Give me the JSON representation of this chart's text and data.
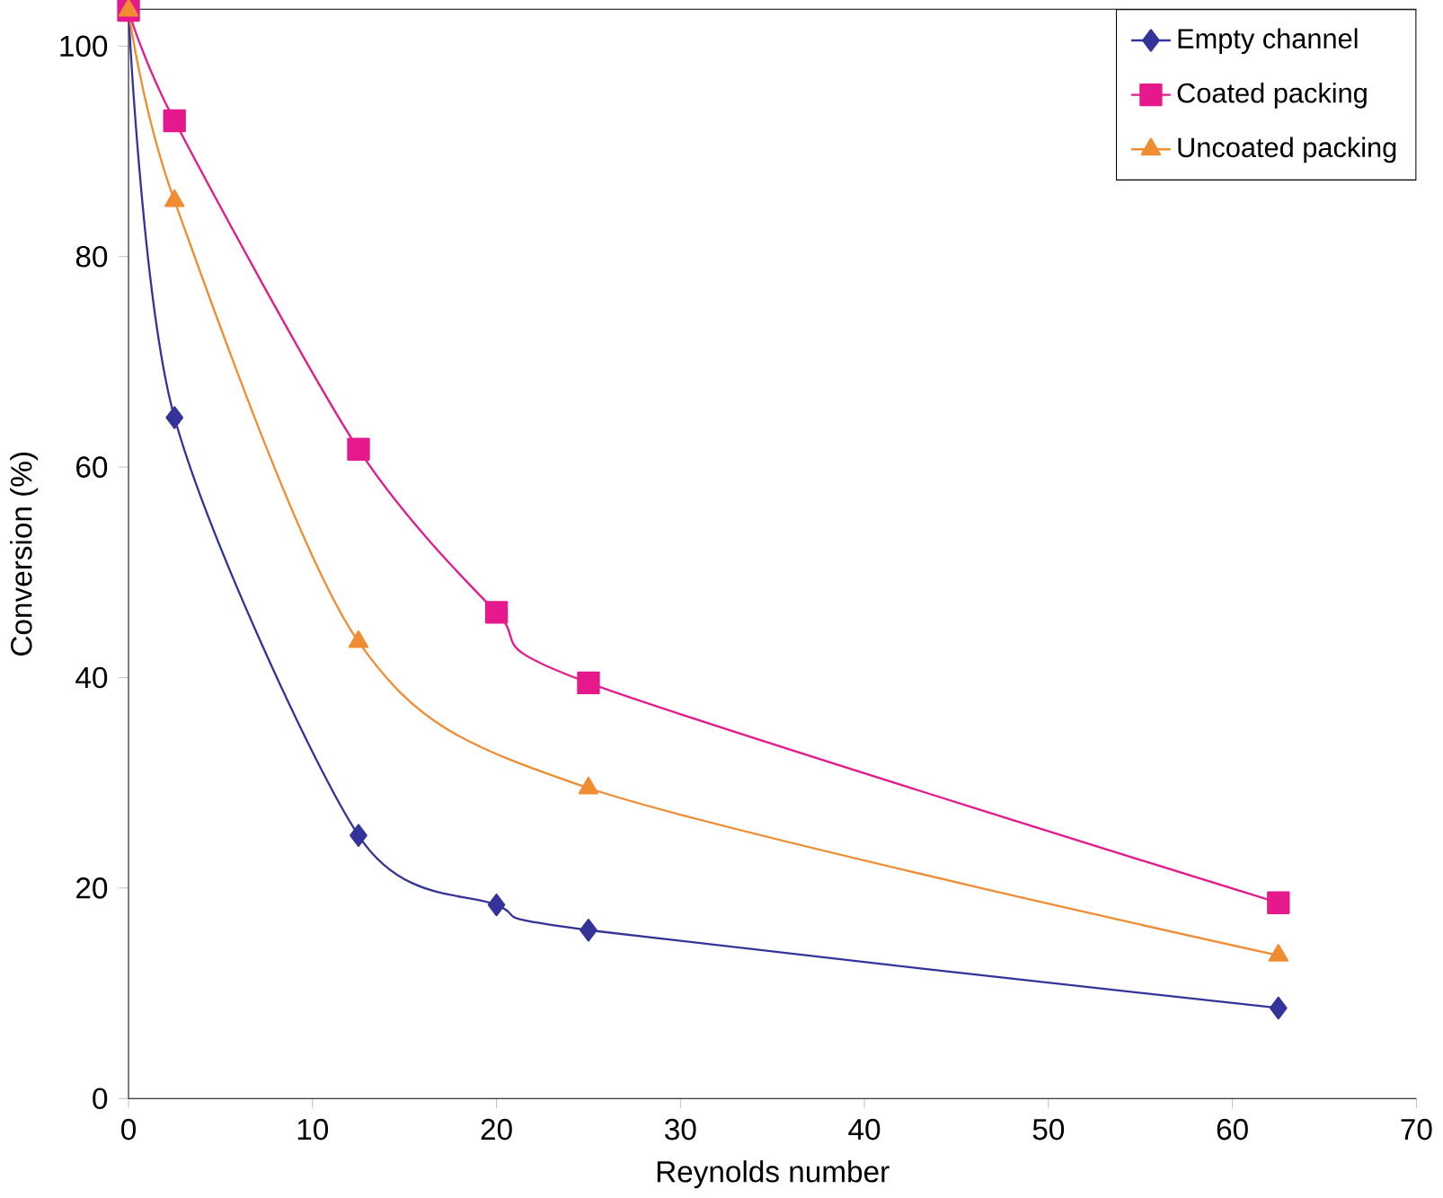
{
  "chart_data": {
    "type": "line",
    "xlabel": "Reynolds number",
    "ylabel": "Conversion (%)",
    "x": [
      0,
      2.5,
      12.5,
      20,
      25,
      62.5
    ],
    "series": [
      {
        "name": "Empty channel",
        "color": "#333399",
        "marker": "diamond",
        "values": [
          103.4,
          64.7,
          25.0,
          18.4,
          16.0,
          8.6
        ]
      },
      {
        "name": "Coated packing",
        "color": "#e6198c",
        "marker": "square",
        "values": [
          103.4,
          92.9,
          61.7,
          46.2,
          39.5,
          18.6
        ]
      },
      {
        "name": "Uncoated packing",
        "color": "#f08c32",
        "marker": "triangle",
        "x": [
          0,
          2.5,
          12.5,
          25,
          62.5
        ],
        "values": [
          103.4,
          85.3,
          43.4,
          29.5,
          13.6
        ]
      }
    ],
    "xlim": [
      0,
      70
    ],
    "xticks": [
      0,
      10,
      20,
      30,
      40,
      50,
      60,
      70
    ],
    "ylim": [
      0,
      103.5
    ],
    "yticks": [
      0,
      20,
      40,
      60,
      80,
      100
    ],
    "grid": false,
    "legend": "top right",
    "line_style": "solid"
  }
}
